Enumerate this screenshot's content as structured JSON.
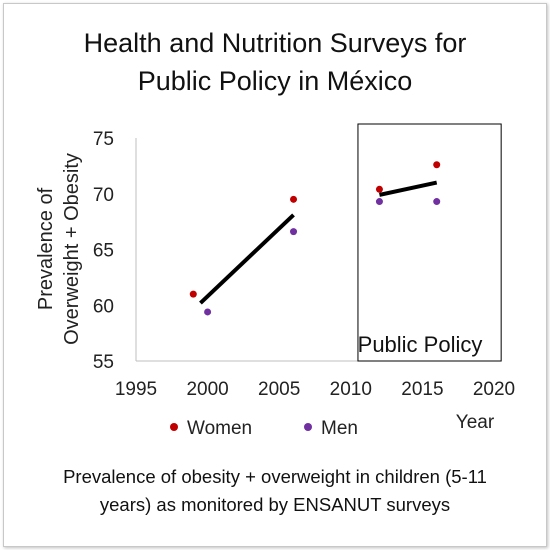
{
  "title_line1": "Health and Nutrition Surveys for",
  "title_line2": "Public Policy in México",
  "caption_line1": "Prevalence of obesity + overweight in children  (5-11",
  "caption_line2": "years) as monitored by  ENSANUT surveys",
  "colors": {
    "women": "#c00000",
    "men": "#7030a0",
    "trend": "#000000",
    "axis": "#bfbfbf"
  },
  "chart_data": {
    "type": "scatter",
    "xlabel": "Year",
    "ylabel_line1": "Prevalence of",
    "ylabel_line2": "Overweight + Obesity",
    "xlim": [
      1995,
      2020
    ],
    "ylim": [
      55,
      75
    ],
    "x_ticks": [
      1995,
      2000,
      2005,
      2010,
      2015,
      2020
    ],
    "y_ticks": [
      55,
      60,
      65,
      70,
      75
    ],
    "grid": false,
    "legend_position": "bottom",
    "series": [
      {
        "name": "Women",
        "x": [
          1999,
          2006,
          2012,
          2016
        ],
        "y": [
          61.0,
          69.5,
          70.4,
          72.6
        ]
      },
      {
        "name": "Men",
        "x": [
          2000,
          2006,
          2012,
          2016
        ],
        "y": [
          59.4,
          66.6,
          69.3,
          69.3
        ]
      }
    ],
    "trend_lines": [
      {
        "x": [
          1999.5,
          2006
        ],
        "y": [
          60.2,
          68.1
        ]
      },
      {
        "x": [
          2012,
          2016
        ],
        "y": [
          69.9,
          71.0
        ]
      }
    ],
    "annotation": {
      "label": "Public Policy",
      "x_range": [
        2010.5,
        2020.5
      ],
      "y_range": [
        55,
        75
      ]
    }
  }
}
